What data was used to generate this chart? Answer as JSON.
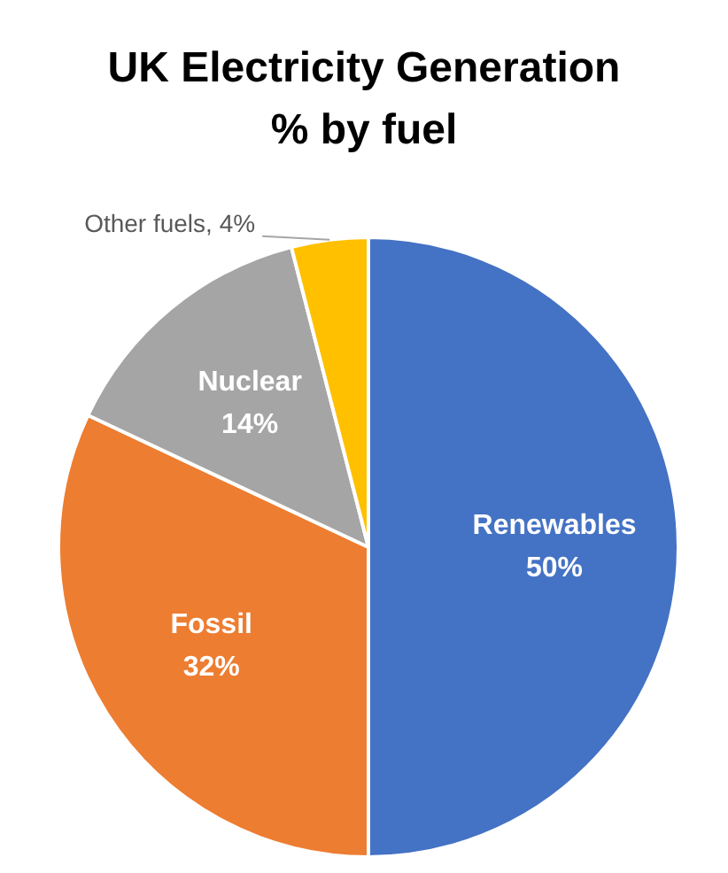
{
  "chart_data": {
    "type": "pie",
    "title": "UK Electricity Generation\n% by fuel",
    "categories": [
      "Renewables",
      "Fossil",
      "Nuclear",
      "Other fuels"
    ],
    "values": [
      50,
      32,
      14,
      4
    ],
    "colors": [
      "#4472c4",
      "#ed7d31",
      "#a5a5a5",
      "#ffc000"
    ],
    "value_labels": [
      "50%",
      "32%",
      "14%",
      "4%"
    ]
  }
}
